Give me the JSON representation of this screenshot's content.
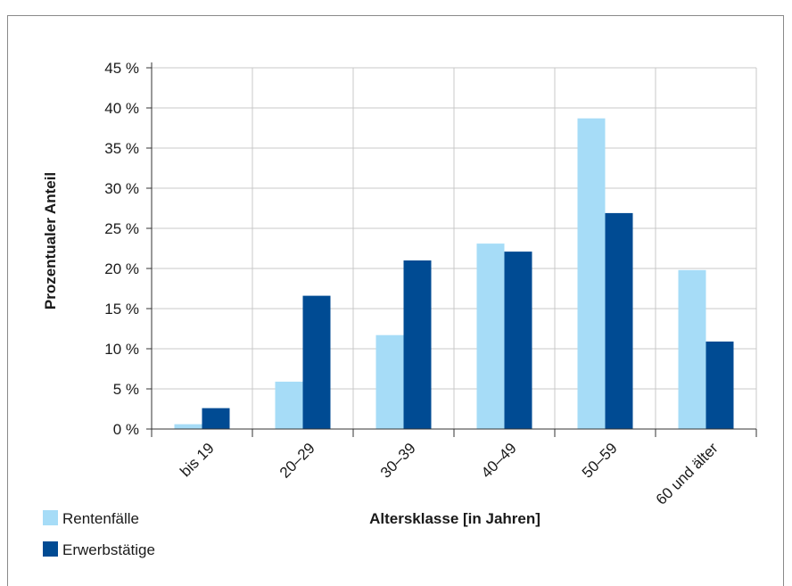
{
  "chart_data": {
    "type": "bar",
    "xlabel": "Altersklasse [in Jahren]",
    "ylabel": "Prozentualer Anteil",
    "categories": [
      "bis 19",
      "20–29",
      "30–39",
      "40–49",
      "50–59",
      "60 und älter"
    ],
    "series": [
      {
        "name": "Rentenfälle",
        "color": "#a6dcf7",
        "values": [
          0.6,
          5.9,
          11.7,
          23.1,
          38.7,
          19.8
        ]
      },
      {
        "name": "Erwerbstätige",
        "color": "#004b93",
        "values": [
          2.6,
          16.6,
          21.0,
          22.1,
          26.9,
          10.9
        ]
      }
    ],
    "yticks": [
      "0 %",
      "5 %",
      "10 %",
      "15 %",
      "20 %",
      "25 %",
      "30 %",
      "35 %",
      "40 %",
      "45 %"
    ],
    "ylim": [
      0,
      45
    ],
    "ystep": 5,
    "grid": true,
    "legend_position": "bottom-left"
  }
}
